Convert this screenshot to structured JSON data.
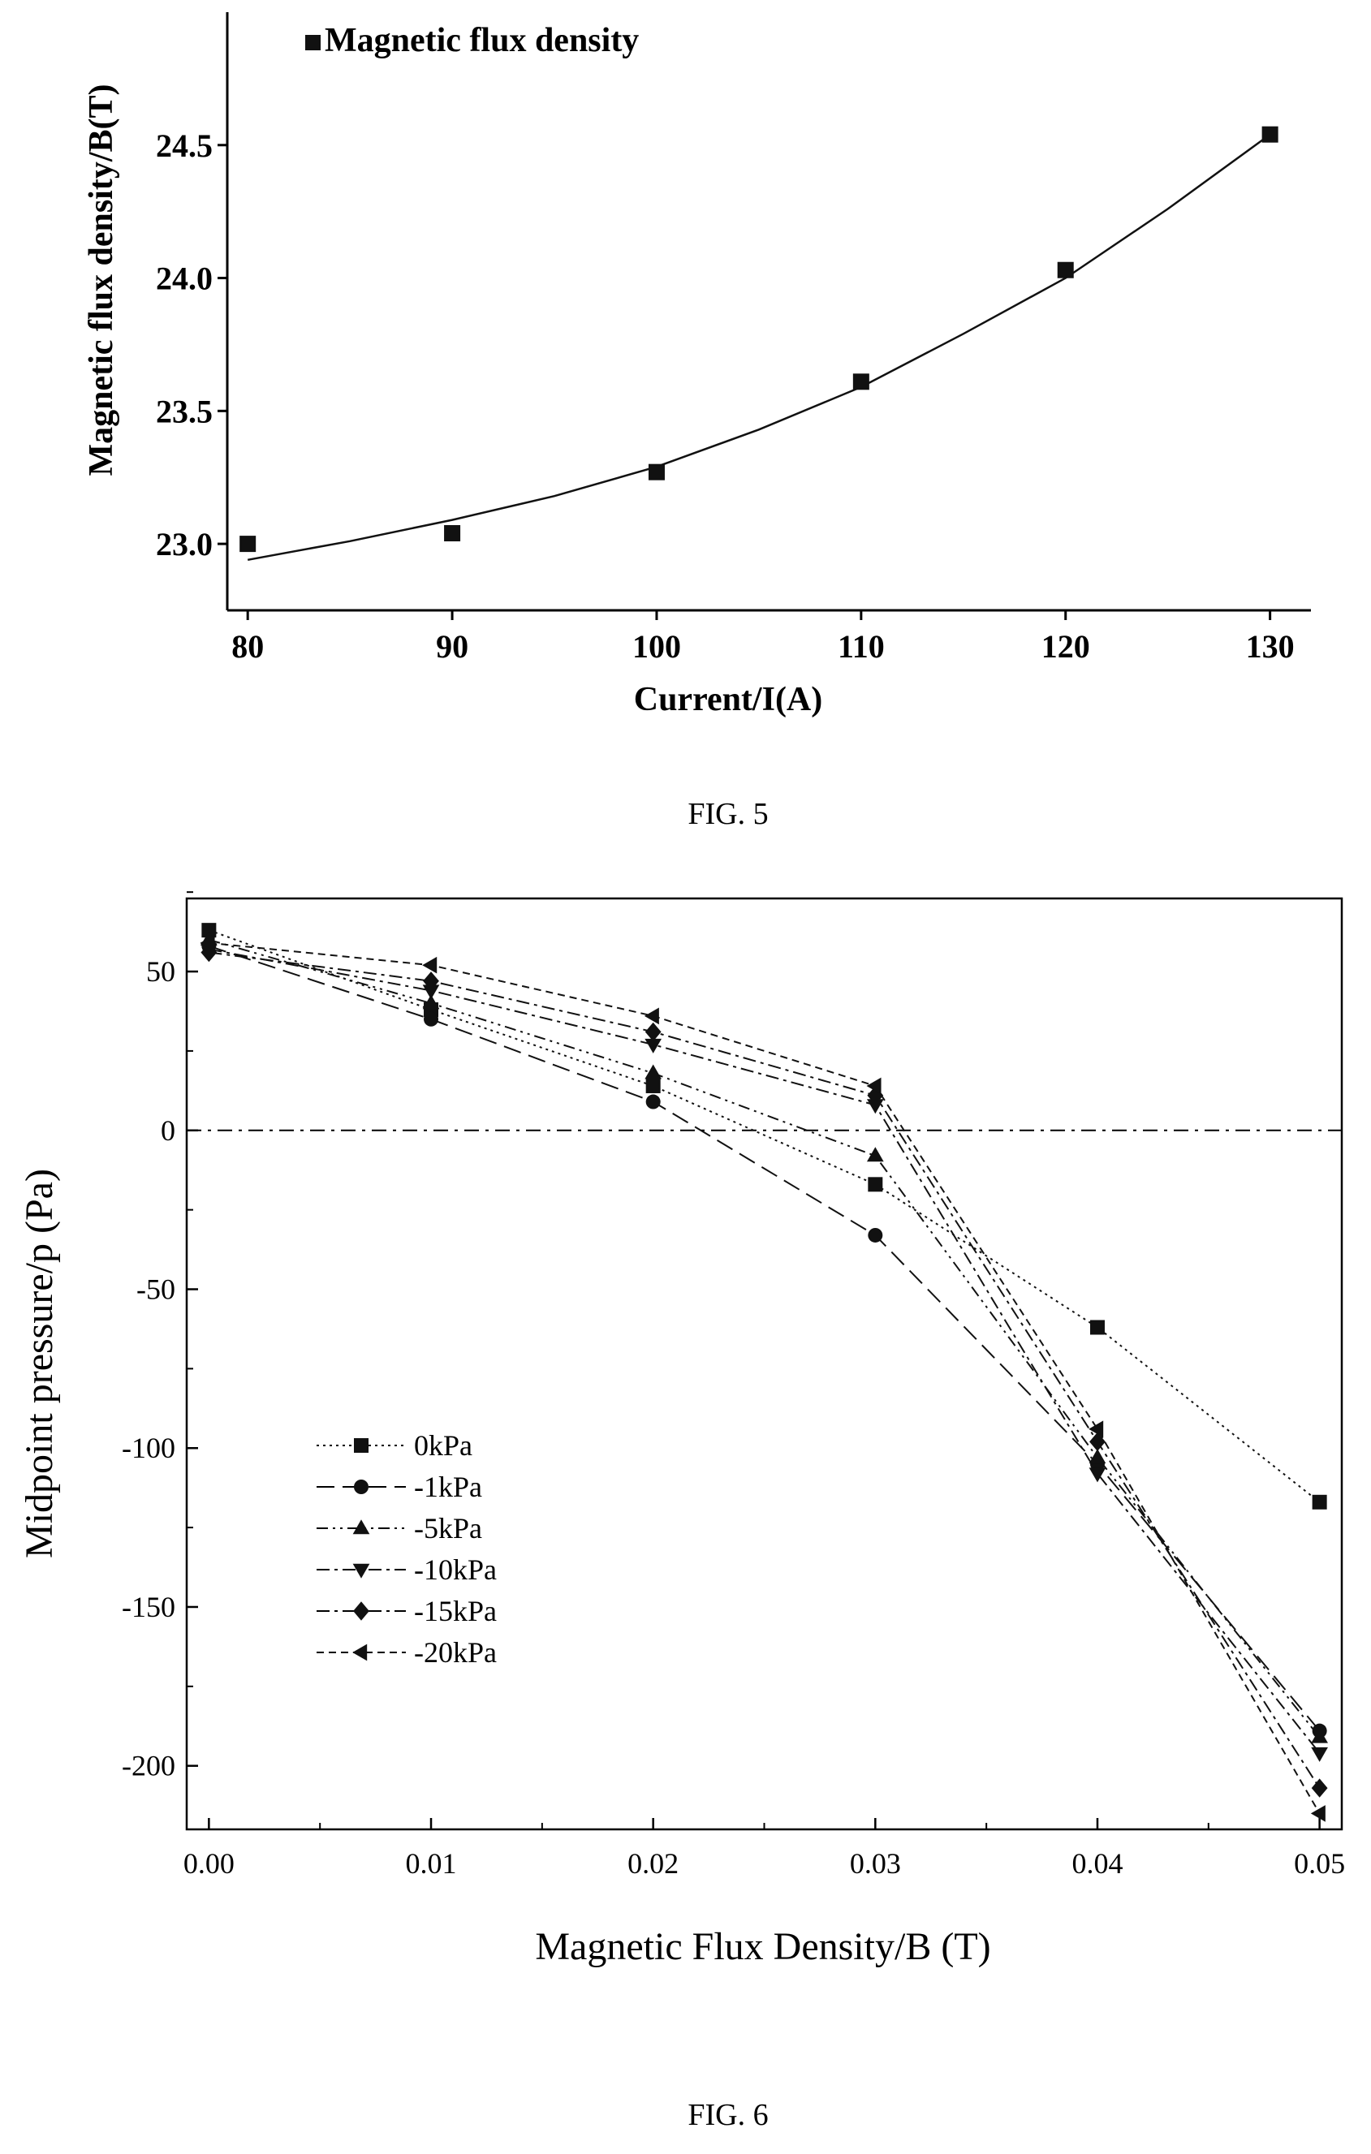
{
  "captions": {
    "fig5": "FIG. 5",
    "fig6": "FIG. 6"
  },
  "chart_data": [
    {
      "type": "scatter",
      "xlabel": "Current/I(A)",
      "ylabel": "Magnetic flux density/B(T)",
      "xlim": [
        79,
        132
      ],
      "ylim": [
        22.75,
        25.0
      ],
      "x_ticks": [
        "80",
        "90",
        "100",
        "110",
        "120",
        "130"
      ],
      "y_ticks": [
        "23.0",
        "23.5",
        "24.0",
        "24.5"
      ],
      "legend": {
        "placement": "top-left",
        "entries": [
          "Magnetic flux density"
        ]
      },
      "series": [
        {
          "name": "Magnetic flux density",
          "marker": "square",
          "x": [
            80,
            90,
            100,
            110,
            120,
            130
          ],
          "y": [
            23.0,
            23.04,
            23.27,
            23.61,
            24.03,
            24.54
          ]
        }
      ],
      "fit_curve": {
        "x": [
          80,
          85,
          90,
          95,
          100,
          105,
          110,
          115,
          120,
          125,
          130
        ],
        "y": [
          22.94,
          23.01,
          23.09,
          23.18,
          23.29,
          23.43,
          23.59,
          23.79,
          24.0,
          24.26,
          24.54
        ]
      },
      "colors": {
        "marker": "#111111",
        "line": "#111111"
      }
    },
    {
      "type": "line",
      "xlabel": "Magnetic Flux Density/B (T)",
      "ylabel": "Midpoint pressure/p (Pa)",
      "xlim": [
        -0.001,
        0.051
      ],
      "ylim": [
        -220,
        73
      ],
      "x": [
        0.0,
        0.01,
        0.02,
        0.03,
        0.04,
        0.05
      ],
      "x_ticks": [
        "0.00",
        "0.01",
        "0.02",
        "0.03",
        "0.04",
        "0.05"
      ],
      "y_ticks": [
        "50",
        "0",
        "-50",
        "-100",
        "-150",
        "-200"
      ],
      "reference_line": {
        "y": 0,
        "style": "dash-dot"
      },
      "legend": {
        "placement": "lower-left"
      },
      "series": [
        {
          "name": "0kPa",
          "marker": "square",
          "dash": "dotted",
          "values": [
            63,
            38,
            14,
            -17,
            -62,
            -117
          ]
        },
        {
          "name": "-1kPa",
          "marker": "circle",
          "dash": "dash",
          "values": [
            58,
            35,
            9,
            -33,
            -105,
            -189
          ]
        },
        {
          "name": "-5kPa",
          "marker": "tri-up",
          "dash": "dash-dot-dot",
          "values": [
            60,
            40,
            18,
            -8,
            -103,
            -191
          ]
        },
        {
          "name": "-10kPa",
          "marker": "tri-down",
          "dash": "dash-dot",
          "values": [
            57,
            44,
            27,
            8,
            -108,
            -196
          ]
        },
        {
          "name": "-15kPa",
          "marker": "diamond",
          "dash": "dash-dot",
          "values": [
            56,
            47,
            31,
            11,
            -98,
            -207
          ]
        },
        {
          "name": "-20kPa",
          "marker": "tri-left",
          "dash": "short-dash",
          "values": [
            59,
            52,
            36,
            14,
            -94,
            -215
          ]
        }
      ],
      "colors": {
        "marker": "#111111",
        "line": "#111111"
      }
    }
  ]
}
